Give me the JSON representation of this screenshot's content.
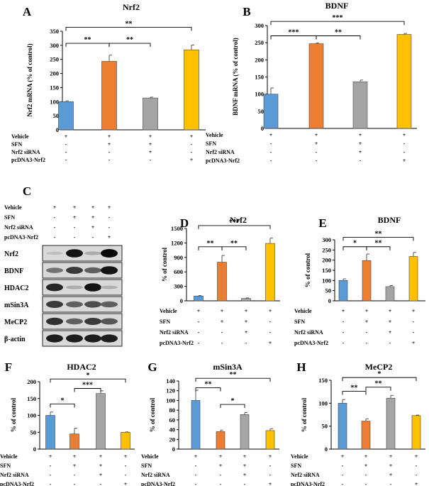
{
  "condition_rows": [
    "Vehicle",
    "SFN",
    "Nrf2 siRNA",
    "pcDNA3-Nrf2"
  ],
  "condition_marks": [
    [
      "+",
      "+",
      "+",
      "+"
    ],
    [
      "-",
      "+",
      "+",
      "-"
    ],
    [
      "-",
      "-",
      "+",
      "-"
    ],
    [
      "-",
      "-",
      "-",
      "+"
    ]
  ],
  "colors": {
    "vehicle": "#5b9bd5",
    "sfn": "#ed7d31",
    "sirna": "#a5a5a5",
    "pcdna": "#ffc000"
  },
  "blot": {
    "panel_label": "C",
    "bands": [
      "Nrf2",
      "BDNF",
      "HDAC2",
      "mSin3A",
      "MeCP2",
      "β-actin"
    ]
  },
  "chart_data": [
    {
      "panel": "A",
      "type": "bar",
      "title": "Nrf2",
      "ylabel": "Nrf2 mRNA (% of control)",
      "ylim": [
        0,
        350
      ],
      "yticks": [
        "0",
        "50",
        "100",
        "150",
        "200",
        "250",
        "300",
        "350"
      ],
      "values": [
        100,
        243,
        113,
        284
      ],
      "errors": [
        3,
        22,
        3,
        17
      ],
      "sig": [
        {
          "from": 0,
          "to": 1,
          "label": "**"
        },
        {
          "from": 1,
          "to": 2,
          "label": "**"
        },
        {
          "from": 0,
          "to": 3,
          "label": "**"
        }
      ]
    },
    {
      "panel": "B",
      "type": "bar",
      "title": "BDNF",
      "ylabel": "BDNF mRNA (% of control)",
      "ylim": [
        0,
        300
      ],
      "yticks": [
        "0",
        "50",
        "100",
        "150",
        "200",
        "250",
        "300"
      ],
      "values": [
        100,
        247,
        136,
        274
      ],
      "errors": [
        18,
        2,
        5,
        3
      ],
      "sig": [
        {
          "from": 0,
          "to": 1,
          "label": "***"
        },
        {
          "from": 1,
          "to": 2,
          "label": "**"
        },
        {
          "from": 0,
          "to": 3,
          "label": "***"
        }
      ]
    },
    {
      "panel": "D",
      "type": "bar",
      "title": "Nrf2",
      "ylabel": "% of control",
      "ylim": [
        0,
        1500
      ],
      "yticks": [
        "0",
        "300",
        "600",
        "900",
        "1200",
        "1500"
      ],
      "values": [
        100,
        800,
        50,
        1190
      ],
      "errors": [
        10,
        140,
        10,
        110
      ],
      "sig": [
        {
          "from": 0,
          "to": 1,
          "label": "**"
        },
        {
          "from": 1,
          "to": 2,
          "label": "**"
        },
        {
          "from": 0,
          "to": 3,
          "label": "***"
        }
      ]
    },
    {
      "panel": "E",
      "type": "bar",
      "title": "BDNF",
      "ylabel": "% of control",
      "ylim": [
        0,
        300
      ],
      "yticks": [
        "0",
        "50",
        "100",
        "150",
        "200",
        "250",
        "300"
      ],
      "values": [
        100,
        198,
        70,
        218
      ],
      "errors": [
        8,
        32,
        5,
        20
      ],
      "sig": [
        {
          "from": 0,
          "to": 1,
          "label": "*"
        },
        {
          "from": 1,
          "to": 2,
          "label": "**"
        },
        {
          "from": 0,
          "to": 3,
          "label": "**"
        }
      ]
    },
    {
      "panel": "F",
      "type": "bar",
      "title": "HDAC2",
      "ylabel": "% of control",
      "ylim": [
        0,
        200
      ],
      "yticks": [
        "0",
        "50",
        "100",
        "150",
        "200"
      ],
      "values": [
        100,
        45,
        165,
        50
      ],
      "errors": [
        10,
        17,
        8,
        1
      ],
      "sig": [
        {
          "from": 0,
          "to": 1,
          "label": "*"
        },
        {
          "from": 1,
          "to": 2,
          "label": "***"
        },
        {
          "from": 0,
          "to": 3,
          "label": "*"
        }
      ]
    },
    {
      "panel": "G",
      "type": "bar",
      "title": "mSin3A",
      "ylabel": "% of control",
      "ylim": [
        0,
        140
      ],
      "yticks": [
        "0",
        "20",
        "40",
        "60",
        "80",
        "100",
        "120",
        "140"
      ],
      "values": [
        100,
        36,
        71,
        38
      ],
      "errors": [
        21,
        3,
        4,
        4
      ],
      "sig": [
        {
          "from": 0,
          "to": 1,
          "label": "**"
        },
        {
          "from": 1,
          "to": 2,
          "label": "*"
        },
        {
          "from": 0,
          "to": 3,
          "label": "**"
        }
      ]
    },
    {
      "panel": "H",
      "type": "bar",
      "title": "MeCP2",
      "ylabel": "% of control",
      "ylim": [
        0,
        150
      ],
      "yticks": [
        "0",
        "50",
        "100",
        "150"
      ],
      "values": [
        100,
        61,
        111,
        73
      ],
      "errors": [
        8,
        5,
        6,
        1
      ],
      "sig": [
        {
          "from": 0,
          "to": 1,
          "label": "**"
        },
        {
          "from": 1,
          "to": 2,
          "label": "**"
        },
        {
          "from": 0,
          "to": 3,
          "label": "*"
        }
      ]
    }
  ]
}
